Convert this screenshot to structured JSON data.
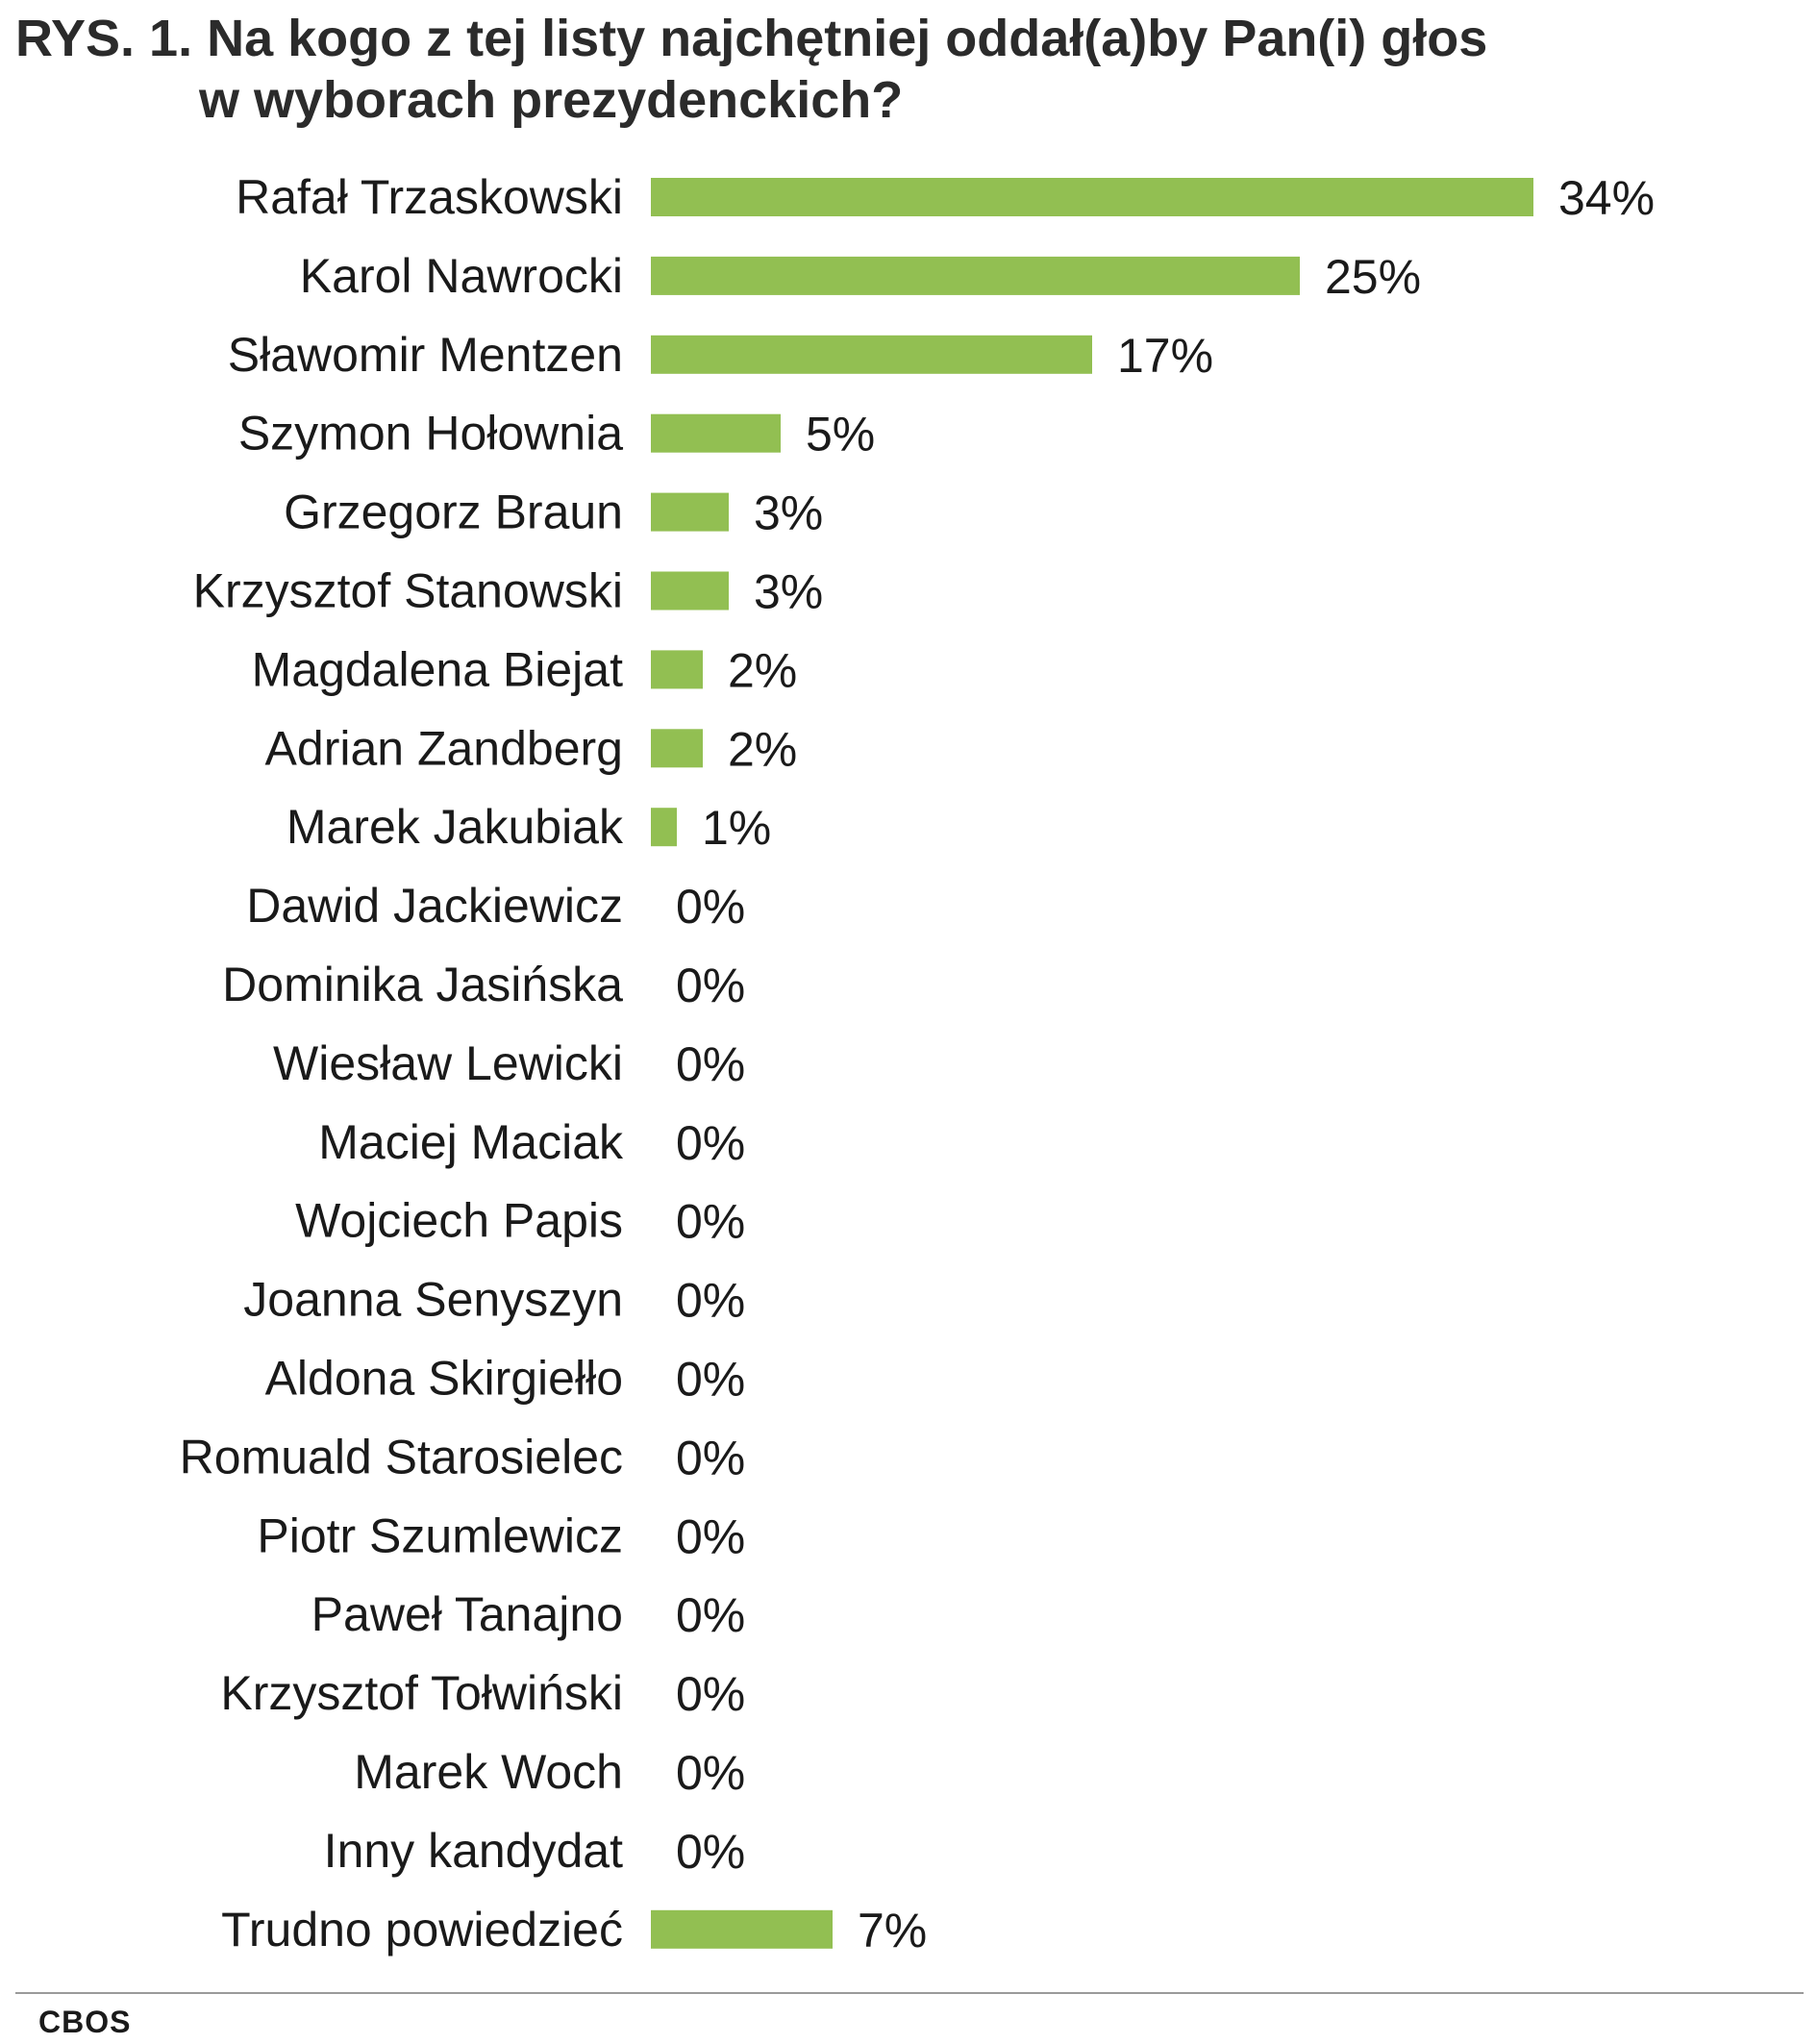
{
  "chart_data": {
    "type": "bar",
    "orientation": "horizontal",
    "title": "RYS. 1. Na kogo z tej listy najchętniej oddał(a)by Pan(i) głos w wyborach prezydenckich?",
    "title_line1": "RYS. 1. Na kogo z tej listy najchętniej oddał(a)by Pan(i) głos",
    "title_line2": "w wyborach prezydenckich?",
    "categories": [
      "Rafał Trzaskowski",
      "Karol Nawrocki",
      "Sławomir Mentzen",
      "Szymon Hołownia",
      "Grzegorz Braun",
      "Krzysztof Stanowski",
      "Magdalena Biejat",
      "Adrian Zandberg",
      "Marek Jakubiak",
      "Dawid Jackiewicz",
      "Dominika Jasińska",
      "Wiesław Lewicki",
      "Maciej Maciak",
      "Wojciech Papis",
      "Joanna Senyszyn",
      "Aldona Skirgiełło",
      "Romuald Starosielec",
      "Piotr Szumlewicz",
      "Paweł Tanajno",
      "Krzysztof Tołwiński",
      "Marek Woch",
      "Inny kandydat",
      "Trudno powiedzieć"
    ],
    "values": [
      34,
      25,
      17,
      5,
      3,
      3,
      2,
      2,
      1,
      0,
      0,
      0,
      0,
      0,
      0,
      0,
      0,
      0,
      0,
      0,
      0,
      0,
      7
    ],
    "value_labels": [
      "34%",
      "25%",
      "17%",
      "5%",
      "3%",
      "3%",
      "2%",
      "2%",
      "1%",
      "0%",
      "0%",
      "0%",
      "0%",
      "0%",
      "0%",
      "0%",
      "0%",
      "0%",
      "0%",
      "0%",
      "0%",
      "0%",
      "7%"
    ],
    "unit": "%",
    "xlim": [
      0,
      34
    ],
    "grid": false,
    "legend": "none",
    "bar_color": "#92bf52"
  },
  "footer": {
    "source": "CBOS"
  }
}
